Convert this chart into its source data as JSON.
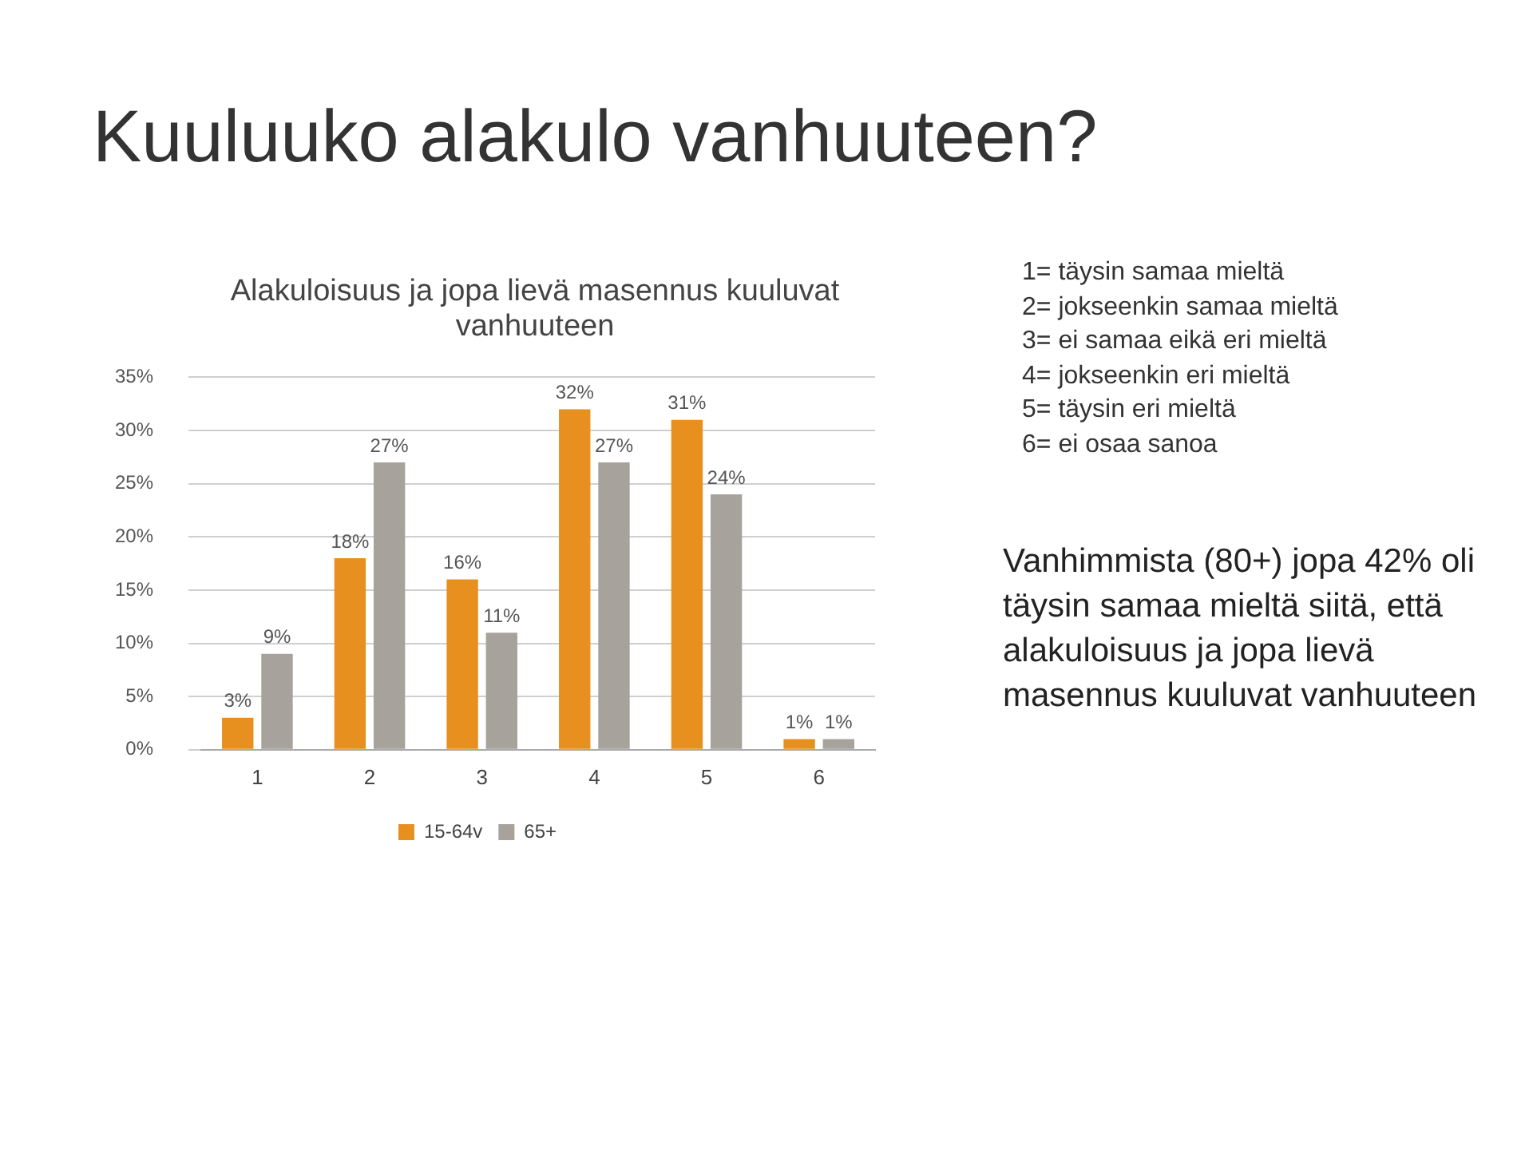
{
  "chart_data": {
    "type": "bar",
    "title": "Alakuloisuus ja jopa lievä masennus kuuluvat vanhuuteen",
    "categories": [
      "1",
      "2",
      "3",
      "4",
      "5",
      "6"
    ],
    "series": [
      {
        "name": "15-64v",
        "color": "#e8901f",
        "values": [
          3,
          18,
          16,
          32,
          31,
          1
        ],
        "value_labels": [
          "3%",
          "18%",
          "16%",
          "32%",
          "31%",
          "1%"
        ]
      },
      {
        "name": "65+",
        "color": "#a8a29c",
        "values": [
          9,
          27,
          11,
          27,
          24,
          1
        ],
        "value_labels": [
          "9%",
          "27%",
          "11%",
          "27%",
          "24%",
          "1%"
        ]
      }
    ],
    "ylim": [
      0,
      35
    ],
    "yticks": [
      {
        "value": 0,
        "label": "0%"
      },
      {
        "value": 5,
        "label": "5%"
      },
      {
        "value": 10,
        "label": "10%"
      },
      {
        "value": 15,
        "label": "15%"
      },
      {
        "value": 20,
        "label": "20%"
      },
      {
        "value": 25,
        "label": "25%"
      },
      {
        "value": 30,
        "label": "30%"
      },
      {
        "value": 35,
        "label": "35%"
      }
    ],
    "grid": "y",
    "legend": "bottom",
    "annotations": [
      "Kuuluuko alakulo vanhuuteen?",
      "1= täysin samaa mieltä\n2= jokseenkin samaa mieltä\n3= ei samaa eikä eri mieltä\n4= jokseenkin eri mieltä\n5= täysin eri mieltä\n6= ei osaa sanoa",
      "Vanhimmista (80+) jopa 42% oli täysin samaa mieltä siitä, että alakuloisuus ja jopa lievä masennus kuuluvat vanhuuteen"
    ]
  }
}
